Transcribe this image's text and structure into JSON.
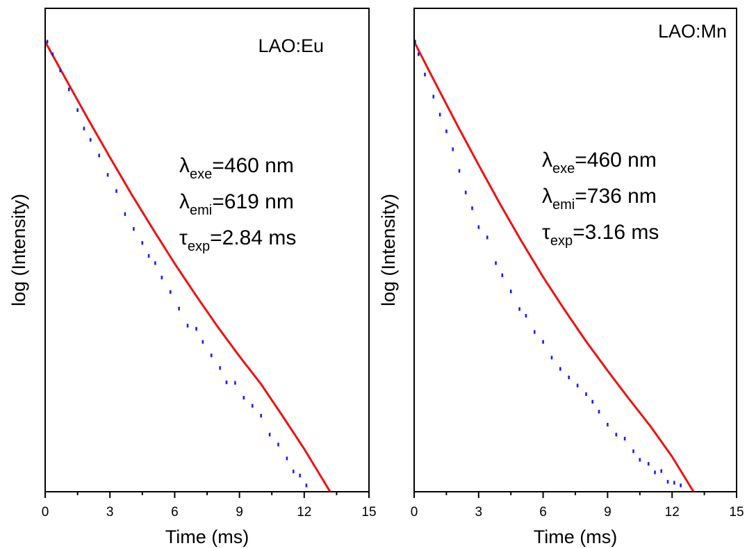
{
  "colors": {
    "data": "#1a1aff",
    "fit": "#ee1111",
    "axis": "#000000"
  },
  "chart_data": [
    {
      "type": "scatter",
      "label": "LAO:Eu",
      "xlabel": "Time (ms)",
      "ylabel": "log (Intensity)",
      "xlim": [
        0,
        15
      ],
      "xticks": [
        0,
        3,
        6,
        9,
        12,
        15
      ],
      "y_tick_labels_shown": false,
      "yscale": "log",
      "params": [
        {
          "symbol": "λ",
          "sub": "exe",
          "value": "=460 nm"
        },
        {
          "symbol": "λ",
          "sub": "emi",
          "value": "=619 nm"
        },
        {
          "symbol": "τ",
          "sub": "exp",
          "value": "=2.84 ms"
        }
      ],
      "series": [
        {
          "style": "dotted",
          "color": "#1a1aff",
          "x": [
            0.1,
            0.35,
            0.7,
            1.1,
            1.5,
            1.8,
            2.1,
            2.5,
            2.9,
            3.3,
            3.7,
            4.1,
            4.5,
            4.8,
            5.1,
            5.4,
            5.8,
            6.2,
            6.6,
            7.0,
            7.3,
            7.7,
            8.1,
            8.4,
            8.8,
            9.2,
            9.6,
            10.0,
            10.4,
            10.8,
            11.2,
            11.5,
            11.8,
            12.1
          ],
          "y": [
            100,
            97.2,
            93.6,
            89.4,
            84.8,
            80.7,
            78.2,
            74.7,
            70.4,
            66.8,
            61.7,
            58.4,
            55.3,
            52.4,
            50.8,
            47.6,
            44.4,
            40.7,
            36.9,
            36.2,
            33.3,
            30.3,
            27.5,
            24.3,
            24.2,
            20.9,
            19.1,
            16.9,
            12.7,
            10.5,
            7.4,
            4.5,
            3.6,
            1.4
          ]
        },
        {
          "style": "line",
          "color": "#ee1111",
          "x": [
            0,
            1,
            2,
            3,
            4,
            5,
            6,
            7,
            8,
            9,
            10,
            11,
            12,
            13.2
          ],
          "y": [
            100,
            91.3,
            82.7,
            74.3,
            66.1,
            58.3,
            50.7,
            43.5,
            36.6,
            30.1,
            23.9,
            16.8,
            9.5,
            0
          ]
        }
      ]
    },
    {
      "type": "scatter",
      "label": "LAO:Mn",
      "xlabel": "Time (ms)",
      "ylabel": "log (Intensity)",
      "xlim": [
        0,
        15
      ],
      "xticks": [
        0,
        3,
        6,
        9,
        12,
        15
      ],
      "y_tick_labels_shown": false,
      "yscale": "log",
      "params": [
        {
          "symbol": "λ",
          "sub": "exe",
          "value": "=460 nm"
        },
        {
          "symbol": "λ",
          "sub": "emi",
          "value": "=736 nm"
        },
        {
          "symbol": "τ",
          "sub": "exp",
          "value": "=3.16 ms"
        }
      ],
      "series": [
        {
          "style": "dotted",
          "color": "#1a1aff",
          "x": [
            0.05,
            0.2,
            0.5,
            0.9,
            1.2,
            1.5,
            1.8,
            2.1,
            2.4,
            2.7,
            3.0,
            3.4,
            3.8,
            4.1,
            4.5,
            4.9,
            5.2,
            5.6,
            6.0,
            6.4,
            6.8,
            7.2,
            7.6,
            8.0,
            8.3,
            8.6,
            9.0,
            9.4,
            9.8,
            10.2,
            10.5,
            10.9,
            11.2,
            11.5,
            11.8,
            12.1,
            12.4
          ],
          "y": [
            100,
            97.2,
            92.7,
            87.8,
            83.8,
            80.1,
            76.1,
            71.3,
            66.5,
            63.0,
            58.8,
            56.5,
            50.8,
            48.1,
            44.5,
            40.6,
            39.1,
            35.5,
            33.3,
            29.8,
            27.3,
            25.4,
            23.6,
            21.7,
            20.0,
            17.8,
            14.9,
            12.7,
            11.8,
            9.0,
            7.1,
            6.2,
            4.3,
            4.6,
            2.2,
            2.0,
            1.4
          ]
        },
        {
          "style": "line",
          "color": "#ee1111",
          "x": [
            0,
            1,
            2,
            3,
            4,
            5,
            6,
            7,
            8,
            9,
            10,
            11,
            12,
            13.0
          ],
          "y": [
            100,
            90.7,
            81.5,
            72.6,
            63.9,
            55.6,
            47.7,
            40.4,
            33.4,
            26.9,
            20.6,
            14.5,
            7.8,
            0
          ]
        }
      ]
    }
  ]
}
